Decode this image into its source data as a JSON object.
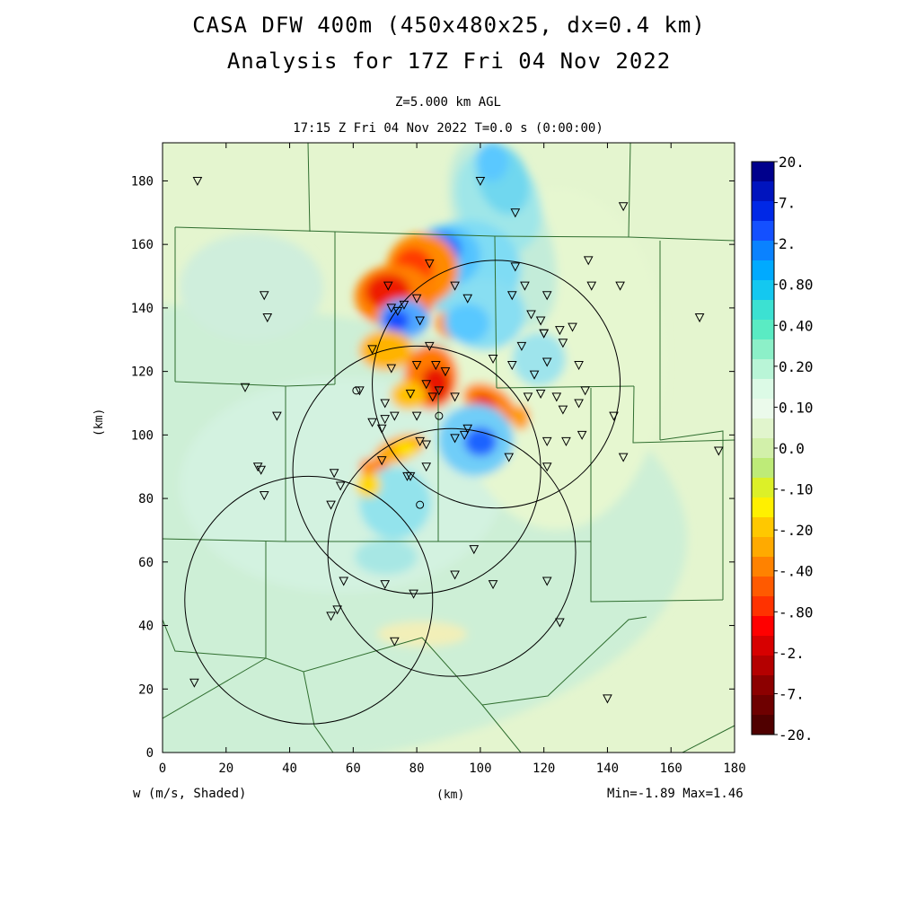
{
  "title": {
    "line1": "CASA DFW 400m (450x480x25, dx=0.4 km)",
    "line2": "Analysis for 17Z Fri 04 Nov 2022"
  },
  "subtitle": {
    "level": "Z=5.000 km AGL",
    "time": "17:15 Z Fri 04 Nov 2022   T=0.0 s (0:00:00)"
  },
  "axes": {
    "xlabel": "(km)",
    "ylabel": "(km)",
    "xlim": [
      0,
      180
    ],
    "ylim": [
      0,
      192
    ],
    "xticks": [
      "0",
      "20",
      "40",
      "60",
      "80",
      "100",
      "120",
      "140",
      "160",
      "180"
    ],
    "yticks": [
      "0",
      "20",
      "40",
      "60",
      "80",
      "100",
      "120",
      "140",
      "160",
      "180"
    ]
  },
  "field_label": "w (m/s, Shaded)",
  "minmax": "Min=-1.89 Max=1.46",
  "colorbar": {
    "labels": [
      "20.",
      "7.",
      "2.",
      "0.80",
      "0.40",
      "0.20",
      "0.10",
      "0.0",
      "-.10",
      "-.20",
      "-.40",
      "-.80",
      "-2.",
      "-7.",
      "-20."
    ],
    "colors_top_to_bottom": [
      "#00008c",
      "#0014be",
      "#0028e6",
      "#1450ff",
      "#0a82ff",
      "#00aaff",
      "#14c8f0",
      "#3ce1d2",
      "#5aebc3",
      "#8cf0c8",
      "#b9f5d7",
      "#dcfae6",
      "#ebfaeb",
      "#e1f5cd",
      "#d2f0aa",
      "#beeb78",
      "#dcf028",
      "#fff000",
      "#ffc800",
      "#ffaa00",
      "#ff8200",
      "#ff5a00",
      "#ff3200",
      "#ff0000",
      "#d70000",
      "#b40000",
      "#8c0000",
      "#6e0000",
      "#500000"
    ]
  },
  "chart_data": {
    "type": "map",
    "units": "km",
    "radar_range_rings": [
      {
        "center": [
          105,
          116
        ],
        "radius": 39
      },
      {
        "center": [
          80,
          89
        ],
        "radius": 39
      },
      {
        "center": [
          91,
          63
        ],
        "radius": 39
      },
      {
        "center": [
          46,
          48
        ],
        "radius": 39
      }
    ],
    "station_markers_triangle": [
      [
        11,
        180
      ],
      [
        100,
        180
      ],
      [
        111,
        170
      ],
      [
        145,
        172
      ],
      [
        84,
        154
      ],
      [
        134,
        155
      ],
      [
        111,
        153
      ],
      [
        32,
        144
      ],
      [
        33,
        137
      ],
      [
        71,
        147
      ],
      [
        76,
        141
      ],
      [
        80,
        143
      ],
      [
        92,
        147
      ],
      [
        96,
        143
      ],
      [
        110,
        144
      ],
      [
        114,
        147
      ],
      [
        121,
        144
      ],
      [
        135,
        147
      ],
      [
        144,
        147
      ],
      [
        169,
        137
      ],
      [
        72,
        140
      ],
      [
        74,
        139
      ],
      [
        81,
        136
      ],
      [
        116,
        138
      ],
      [
        119,
        136
      ],
      [
        120,
        132
      ],
      [
        125,
        133
      ],
      [
        129,
        134
      ],
      [
        126,
        129
      ],
      [
        120,
        132
      ],
      [
        113,
        128
      ],
      [
        104,
        124
      ],
      [
        66,
        127
      ],
      [
        84,
        128
      ],
      [
        72,
        121
      ],
      [
        80,
        122
      ],
      [
        86,
        122
      ],
      [
        89,
        120
      ],
      [
        83,
        116
      ],
      [
        85,
        112
      ],
      [
        110,
        122
      ],
      [
        117,
        119
      ],
      [
        121,
        123
      ],
      [
        131,
        122
      ],
      [
        26,
        115
      ],
      [
        36,
        106
      ],
      [
        62,
        114
      ],
      [
        66,
        104
      ],
      [
        70,
        110
      ],
      [
        70,
        105
      ],
      [
        73,
        106
      ],
      [
        78,
        113
      ],
      [
        80,
        106
      ],
      [
        87,
        114
      ],
      [
        92,
        112
      ],
      [
        115,
        112
      ],
      [
        119,
        113
      ],
      [
        124,
        112
      ],
      [
        126,
        108
      ],
      [
        131,
        110
      ],
      [
        133,
        114
      ],
      [
        142,
        106
      ],
      [
        69,
        102
      ],
      [
        92,
        99
      ],
      [
        95,
        100
      ],
      [
        96,
        102
      ],
      [
        121,
        98
      ],
      [
        127,
        98
      ],
      [
        132,
        100
      ],
      [
        145,
        93
      ],
      [
        175,
        95
      ],
      [
        69,
        92
      ],
      [
        81,
        98
      ],
      [
        83,
        97
      ],
      [
        30,
        90
      ],
      [
        31,
        89
      ],
      [
        32,
        81
      ],
      [
        77,
        87
      ],
      [
        78,
        87
      ],
      [
        83,
        90
      ],
      [
        109,
        93
      ],
      [
        121,
        90
      ],
      [
        54,
        88
      ],
      [
        56,
        84
      ],
      [
        53,
        78
      ],
      [
        98,
        64
      ],
      [
        57,
        54
      ],
      [
        70,
        53
      ],
      [
        79,
        50
      ],
      [
        92,
        56
      ],
      [
        104,
        53
      ],
      [
        121,
        54
      ],
      [
        55,
        45
      ],
      [
        53,
        43
      ],
      [
        125,
        41
      ],
      [
        73,
        35
      ],
      [
        10,
        22
      ],
      [
        140,
        17
      ]
    ],
    "station_markers_circle": [
      [
        61,
        114
      ],
      [
        87,
        106
      ],
      [
        81,
        78
      ]
    ],
    "county_boundary_lines": "shown",
    "value_range": {
      "min": -1.89,
      "max": 1.46
    }
  }
}
